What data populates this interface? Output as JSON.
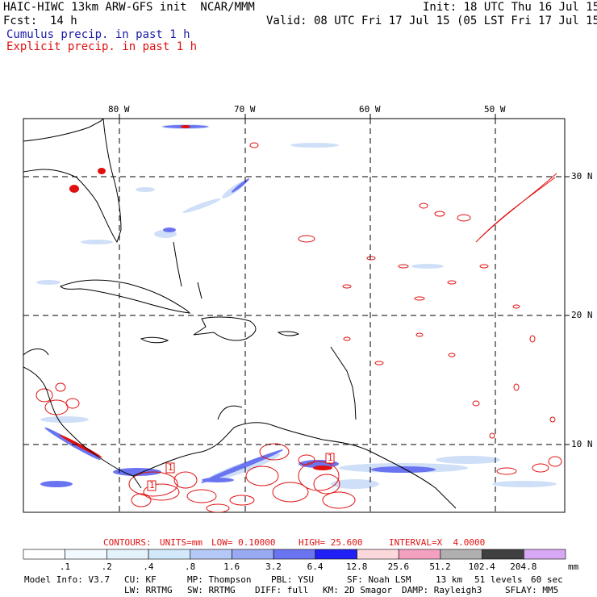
{
  "header": {
    "model_title": "HAIC-HIWC 13km ARW-GFS init  NCAR/MMM",
    "init": "Init: 18 UTC Thu 16 Jul 15",
    "fcst_label": "Fcst:",
    "fcst_value": "14 h",
    "valid": "Valid: 08 UTC Fri 17 Jul 15 (05 LST Fri 17 Jul 15)",
    "legend_cumulus": "Cumulus precip. in past 1 h",
    "legend_explicit": "Explicit precip. in past 1 h"
  },
  "map": {
    "lon_labels": [
      "80 W",
      "70 W",
      "60 W",
      "50 W"
    ],
    "lat_labels": [
      "30 N",
      "20 N",
      "10 N"
    ],
    "box_marker_labels": [
      "1",
      "1",
      "1"
    ]
  },
  "contours_info": {
    "contours": "CONTOURS:",
    "units": "UNITS=mm",
    "low": "LOW= 0.10000",
    "high": "HIGH= 25.600",
    "interval": "INTERVAL=X  4.0000"
  },
  "colorbar": {
    "unit": "mm",
    "ticks": [
      ".1",
      ".2",
      ".4",
      ".8",
      "1.6",
      "3.2",
      "6.4",
      "12.8",
      "25.6",
      "51.2",
      "102.4",
      "204.8"
    ],
    "colors": [
      "#ffffff",
      "#f2f9ff",
      "#e4f2fc",
      "#d2e8fb",
      "#b6c8f6",
      "#9aaaf2",
      "#6a74f0",
      "#2020f4",
      "#fbd8dc",
      "#f4a0c0",
      "#b0b0b0",
      "#404040",
      "#d8a8f4"
    ]
  },
  "model_info": {
    "line1": [
      "Model Info: V3.7",
      "CU: KF",
      "MP: Thompson",
      "PBL: YSU",
      "SF: Noah LSM",
      "13 km",
      "51 levels",
      "60 sec"
    ],
    "line2": [
      "LW: RRTMG",
      "SW: RRTMG",
      "DIFF: full",
      "KM: 2D Smagor",
      "DAMP: Rayleigh3",
      "SFLAY: MM5"
    ]
  }
}
